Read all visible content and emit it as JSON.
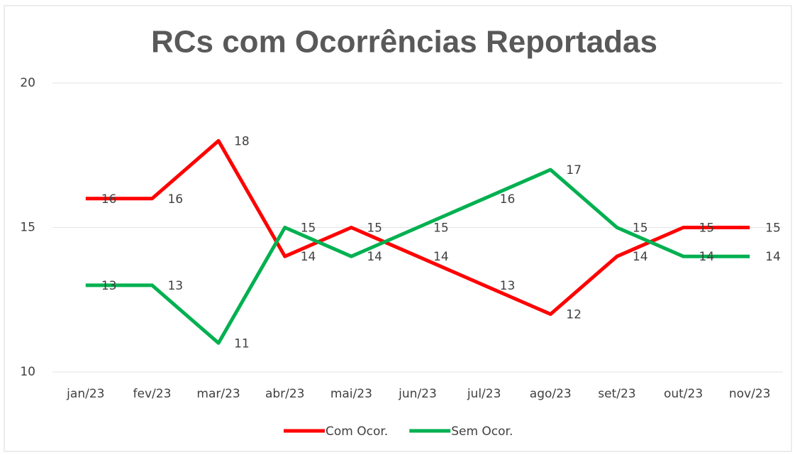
{
  "chart_data": {
    "type": "line",
    "title": "RCs com Ocorrências Reportadas",
    "categories": [
      "jan/23",
      "fev/23",
      "mar/23",
      "abr/23",
      "mai/23",
      "jun/23",
      "jul/23",
      "ago/23",
      "set/23",
      "out/23",
      "nov/23"
    ],
    "series": [
      {
        "name": "Com Ocor.",
        "color": "#ff0000",
        "values": [
          16,
          16,
          18,
          14,
          15,
          14,
          13,
          12,
          14,
          15,
          15
        ]
      },
      {
        "name": "Sem Ocor.",
        "color": "#00b050",
        "values": [
          13,
          13,
          11,
          15,
          14,
          15,
          16,
          17,
          15,
          14,
          14
        ]
      }
    ],
    "ylim": [
      10,
      20
    ],
    "yticks": [
      10,
      15,
      20
    ],
    "grid": true,
    "legend": "bottom"
  }
}
